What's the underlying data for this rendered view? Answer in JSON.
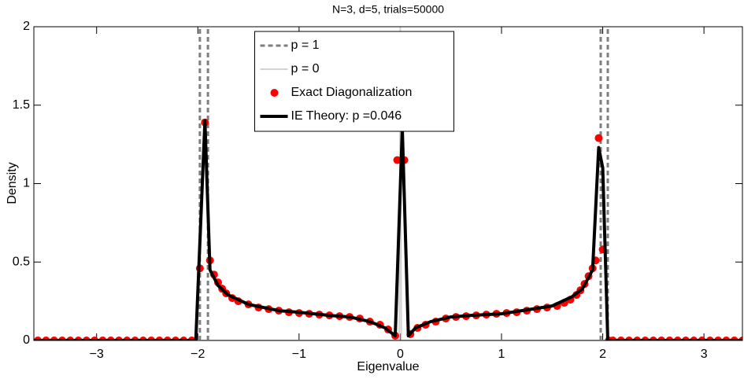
{
  "chart_data": {
    "type": "line",
    "title": "N=3, d=5, trials=50000",
    "x_label": "Eigenvalue",
    "y_label": "Density",
    "xlim": [
      -3.62,
      3.38
    ],
    "ylim": [
      0,
      2
    ],
    "xticks": [
      {
        "value": -3,
        "label": "−3"
      },
      {
        "value": -2,
        "label": "−2"
      },
      {
        "value": -1,
        "label": "−1"
      },
      0,
      1,
      2,
      3
    ],
    "yticks": [
      0,
      0.5,
      1,
      1.5,
      2
    ],
    "grid": false,
    "legend": "top-center",
    "series": [
      {
        "name": "p = 1",
        "color": "#7f7f7f",
        "style": "dashed",
        "x": [
          -1.98,
          -1.98,
          -1.98,
          -1.9,
          -1.9,
          -1.9,
          1.98,
          1.98,
          1.98,
          2.05,
          2.05
        ],
        "values": [
          0,
          2,
          null,
          0,
          2,
          null,
          0,
          2,
          null,
          0,
          2
        ]
      },
      {
        "name": "p = 0",
        "color": "#d3d3d3",
        "style": "solid",
        "x": [
          -3.62,
          -0.01,
          0,
          0.01,
          3.38
        ],
        "values": [
          0,
          0,
          2,
          0,
          0
        ]
      },
      {
        "name": "Exact Diagonalization",
        "color": "#ff0000",
        "style": "markers",
        "x": [
          -3.58,
          -3.5,
          -3.42,
          -3.34,
          -3.26,
          -3.18,
          -3.1,
          -3.02,
          -2.94,
          -2.86,
          -2.78,
          -2.7,
          -2.62,
          -2.54,
          -2.46,
          -2.38,
          -2.3,
          -2.22,
          -2.14,
          -2.06,
          -1.98,
          -1.93,
          -1.88,
          -1.84,
          -1.8,
          -1.76,
          -1.72,
          -1.66,
          -1.6,
          -1.5,
          -1.4,
          -1.3,
          -1.2,
          -1.1,
          -1.0,
          -0.9,
          -0.8,
          -0.7,
          -0.6,
          -0.5,
          -0.4,
          -0.3,
          -0.2,
          -0.12,
          -0.05,
          -0.03,
          0.04,
          0.1,
          0.17,
          0.25,
          0.35,
          0.45,
          0.55,
          0.65,
          0.75,
          0.85,
          0.95,
          1.05,
          1.15,
          1.25,
          1.35,
          1.45,
          1.55,
          1.62,
          1.68,
          1.74,
          1.78,
          1.82,
          1.86,
          1.9,
          1.93,
          1.96,
          2.0,
          2.06,
          2.1,
          2.18,
          2.26,
          2.34,
          2.42,
          2.5,
          2.58,
          2.66,
          2.74,
          2.82,
          2.9,
          2.98,
          3.06,
          3.14,
          3.22,
          3.3,
          3.38
        ],
        "values": [
          0,
          0,
          0,
          0,
          0,
          0,
          0,
          0,
          0,
          0,
          0,
          0,
          0,
          0,
          0,
          0,
          0,
          0,
          0,
          0,
          0.46,
          1.39,
          0.51,
          0.42,
          0.37,
          0.33,
          0.3,
          0.27,
          0.25,
          0.23,
          0.21,
          0.2,
          0.19,
          0.18,
          0.175,
          0.17,
          0.165,
          0.16,
          0.155,
          0.15,
          0.14,
          0.12,
          0.1,
          0.07,
          0.03,
          1.15,
          1.15,
          0.04,
          0.08,
          0.1,
          0.12,
          0.14,
          0.15,
          0.155,
          0.16,
          0.165,
          0.17,
          0.175,
          0.18,
          0.19,
          0.2,
          0.21,
          0.22,
          0.24,
          0.26,
          0.29,
          0.32,
          0.36,
          0.41,
          0.46,
          0.51,
          1.29,
          0.58,
          0,
          0,
          0,
          0,
          0,
          0,
          0,
          0,
          0,
          0,
          0,
          0,
          0,
          0,
          0,
          0,
          0,
          0
        ]
      },
      {
        "name": "IE Theory: p =0.046",
        "color": "#000000",
        "style": "thick",
        "x": [
          -3.62,
          -2.02,
          -1.93,
          -1.88,
          -1.8,
          -1.7,
          -1.5,
          -1.2,
          -1.0,
          -0.7,
          -0.5,
          -0.3,
          -0.15,
          -0.05,
          0.02,
          0.08,
          0.15,
          0.3,
          0.5,
          0.7,
          1.0,
          1.2,
          1.5,
          1.7,
          1.8,
          1.9,
          1.96,
          2.0,
          2.05,
          3.38
        ],
        "values": [
          0,
          0,
          1.4,
          0.45,
          0.35,
          0.29,
          0.23,
          0.19,
          0.18,
          0.16,
          0.15,
          0.12,
          0.08,
          0.03,
          1.35,
          0.03,
          0.08,
          0.12,
          0.15,
          0.16,
          0.17,
          0.19,
          0.22,
          0.28,
          0.33,
          0.45,
          1.23,
          1.1,
          0,
          0
        ]
      }
    ]
  }
}
